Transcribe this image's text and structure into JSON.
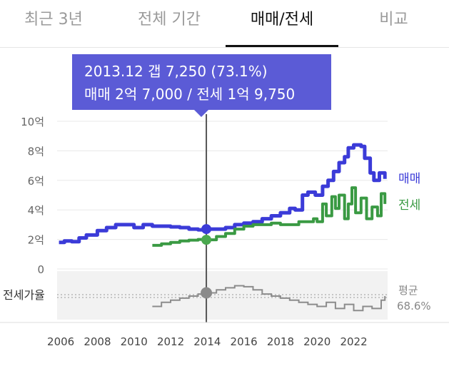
{
  "tabs": [
    {
      "label": "최근 3년",
      "active": false
    },
    {
      "label": "전체 기간",
      "active": false
    },
    {
      "label": "매매/전세",
      "active": true
    },
    {
      "label": "비교",
      "active": false
    }
  ],
  "tooltip": {
    "line1": "2013.12  갭 7,250 (73.1%)",
    "line2": "매매 2억 7,000 / 전세 1억 9,750"
  },
  "colors": {
    "sale": "#3b3bd8",
    "jeonse": "#3a9a43",
    "ratio": "#8c8c8c",
    "tooltip": "#5b5bd6"
  },
  "chart_data": {
    "type": "line",
    "ylim": [
      0,
      10
    ],
    "y_ticks": [
      {
        "value": 0,
        "label": "0"
      },
      {
        "value": 2,
        "label": "2억"
      },
      {
        "value": 4,
        "label": "4억"
      },
      {
        "value": 6,
        "label": "6억"
      },
      {
        "value": 8,
        "label": "8억"
      },
      {
        "value": 10,
        "label": "10억"
      }
    ],
    "x_ticks": [
      "2006",
      "2008",
      "2010",
      "2012",
      "2014",
      "2016",
      "2018",
      "2020",
      "2022"
    ],
    "selected_x": 2013.95,
    "series": [
      {
        "name": "매매",
        "key": "sale",
        "points": [
          [
            2005.9,
            1.8
          ],
          [
            2006.2,
            1.9
          ],
          [
            2006.6,
            1.85
          ],
          [
            2007.0,
            2.1
          ],
          [
            2007.4,
            2.3
          ],
          [
            2008.0,
            2.6
          ],
          [
            2008.5,
            2.8
          ],
          [
            2009.0,
            3.0
          ],
          [
            2009.5,
            3.0
          ],
          [
            2010.0,
            2.8
          ],
          [
            2010.5,
            3.0
          ],
          [
            2011.0,
            2.9
          ],
          [
            2011.5,
            2.9
          ],
          [
            2012.0,
            2.85
          ],
          [
            2012.5,
            2.8
          ],
          [
            2013.0,
            2.7
          ],
          [
            2013.5,
            2.65
          ],
          [
            2013.95,
            2.7
          ],
          [
            2014.5,
            2.7
          ],
          [
            2015.0,
            2.8
          ],
          [
            2015.5,
            3.0
          ],
          [
            2016.0,
            3.1
          ],
          [
            2016.5,
            3.2
          ],
          [
            2017.0,
            3.4
          ],
          [
            2017.5,
            3.6
          ],
          [
            2018.0,
            3.8
          ],
          [
            2018.5,
            4.1
          ],
          [
            2018.8,
            4.0
          ],
          [
            2019.2,
            5.0
          ],
          [
            2019.5,
            5.2
          ],
          [
            2019.9,
            5.0
          ],
          [
            2020.3,
            5.6
          ],
          [
            2020.6,
            6.0
          ],
          [
            2020.9,
            6.6
          ],
          [
            2021.2,
            7.2
          ],
          [
            2021.5,
            7.6
          ],
          [
            2021.7,
            8.2
          ],
          [
            2022.0,
            8.4
          ],
          [
            2022.4,
            8.3
          ],
          [
            2022.6,
            7.5
          ],
          [
            2022.9,
            6.5
          ],
          [
            2023.1,
            6.0
          ],
          [
            2023.4,
            6.5
          ],
          [
            2023.7,
            6.1
          ]
        ]
      },
      {
        "name": "전세",
        "key": "jeonse",
        "points": [
          [
            2011.0,
            1.6
          ],
          [
            2011.5,
            1.7
          ],
          [
            2012.0,
            1.8
          ],
          [
            2012.5,
            1.9
          ],
          [
            2013.0,
            1.95
          ],
          [
            2013.5,
            2.0
          ],
          [
            2013.95,
            1.975
          ],
          [
            2014.5,
            2.2
          ],
          [
            2015.0,
            2.4
          ],
          [
            2015.5,
            2.7
          ],
          [
            2016.0,
            2.9
          ],
          [
            2016.5,
            3.0
          ],
          [
            2017.0,
            3.0
          ],
          [
            2017.5,
            3.1
          ],
          [
            2018.0,
            3.0
          ],
          [
            2018.5,
            3.0
          ],
          [
            2019.0,
            3.2
          ],
          [
            2019.5,
            3.2
          ],
          [
            2019.8,
            3.4
          ],
          [
            2020.0,
            3.2
          ],
          [
            2020.3,
            4.4
          ],
          [
            2020.5,
            3.6
          ],
          [
            2020.8,
            4.9
          ],
          [
            2021.0,
            4.1
          ],
          [
            2021.2,
            5.0
          ],
          [
            2021.5,
            3.4
          ],
          [
            2021.7,
            4.4
          ],
          [
            2021.9,
            5.5
          ],
          [
            2022.1,
            3.8
          ],
          [
            2022.4,
            4.8
          ],
          [
            2022.7,
            3.4
          ],
          [
            2023.0,
            4.2
          ],
          [
            2023.3,
            3.6
          ],
          [
            2023.5,
            5.1
          ],
          [
            2023.7,
            4.4
          ]
        ]
      }
    ],
    "ratio": {
      "label": "전세가율",
      "average_label": "평균",
      "average_value": "68.6%",
      "average": 68.6,
      "range": [
        50,
        90
      ],
      "points": [
        [
          2011.0,
          60
        ],
        [
          2011.5,
          64
        ],
        [
          2012.0,
          66
        ],
        [
          2012.5,
          68
        ],
        [
          2013.0,
          70
        ],
        [
          2013.5,
          72
        ],
        [
          2013.95,
          73.1
        ],
        [
          2014.5,
          76
        ],
        [
          2015.0,
          78
        ],
        [
          2015.5,
          80
        ],
        [
          2016.0,
          79
        ],
        [
          2016.5,
          76
        ],
        [
          2017.0,
          72
        ],
        [
          2017.5,
          70
        ],
        [
          2018.0,
          68
        ],
        [
          2018.5,
          66
        ],
        [
          2019.0,
          64
        ],
        [
          2019.5,
          62
        ],
        [
          2020.0,
          60
        ],
        [
          2020.5,
          64
        ],
        [
          2021.0,
          58
        ],
        [
          2021.5,
          62
        ],
        [
          2022.0,
          56
        ],
        [
          2022.5,
          60
        ],
        [
          2023.0,
          58
        ],
        [
          2023.5,
          66
        ],
        [
          2023.7,
          70
        ]
      ]
    }
  }
}
